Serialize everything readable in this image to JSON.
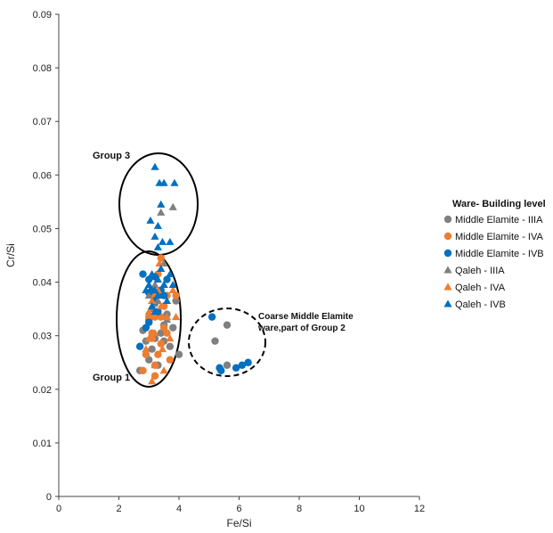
{
  "chart_data": {
    "type": "scatter",
    "xlabel": "Fe/Si",
    "ylabel": "Cr/Si",
    "xlim": [
      0,
      12
    ],
    "ylim": [
      0,
      0.09
    ],
    "x_ticks": [
      "0",
      "2",
      "4",
      "6",
      "8",
      "10",
      "12"
    ],
    "y_ticks": [
      "0",
      "0.01",
      "0.02",
      "0.03",
      "0.04",
      "0.05",
      "0.06",
      "0.07",
      "0.08",
      "0.09"
    ],
    "grid": false,
    "legend": {
      "title": "Ware- Building level",
      "placement": "right"
    },
    "colors": {
      "gray": "#808080",
      "orange": "#ED7D31",
      "blue": "#0070C0"
    },
    "series": [
      {
        "name": "Middle Elamite - IIIA",
        "marker": "circle",
        "color": "#808080",
        "points": [
          [
            2.7,
            0.0235
          ],
          [
            2.8,
            0.031
          ],
          [
            2.9,
            0.029
          ],
          [
            3.0,
            0.033
          ],
          [
            3.1,
            0.0275
          ],
          [
            3.2,
            0.036
          ],
          [
            3.3,
            0.0245
          ],
          [
            3.4,
            0.0305
          ],
          [
            3.5,
            0.032
          ],
          [
            3.6,
            0.034
          ],
          [
            3.7,
            0.028
          ],
          [
            3.8,
            0.0315
          ],
          [
            3.9,
            0.0365
          ],
          [
            4.0,
            0.0265
          ],
          [
            3.3,
            0.038
          ],
          [
            3.0,
            0.0255
          ],
          [
            3.5,
            0.029
          ],
          [
            3.2,
            0.0295
          ],
          [
            5.2,
            0.029
          ],
          [
            5.6,
            0.032
          ],
          [
            5.6,
            0.0245
          ]
        ]
      },
      {
        "name": "Middle Elamite - IVA",
        "marker": "circle",
        "color": "#ED7D31",
        "points": [
          [
            2.8,
            0.0235
          ],
          [
            2.9,
            0.0265
          ],
          [
            3.0,
            0.0335
          ],
          [
            3.1,
            0.0305
          ],
          [
            3.2,
            0.0225
          ],
          [
            3.3,
            0.0345
          ],
          [
            3.4,
            0.0285
          ],
          [
            3.5,
            0.0315
          ],
          [
            3.6,
            0.0375
          ],
          [
            3.7,
            0.0255
          ],
          [
            3.3,
            0.0265
          ],
          [
            3.4,
            0.0335
          ],
          [
            3.5,
            0.0355
          ],
          [
            3.1,
            0.0295
          ],
          [
            3.0,
            0.0325
          ],
          [
            3.2,
            0.0335
          ],
          [
            3.4,
            0.0445
          ],
          [
            3.6,
            0.0305
          ],
          [
            3.9,
            0.0375
          ],
          [
            3.1,
            0.0375
          ],
          [
            3.3,
            0.0415
          ],
          [
            3.2,
            0.0245
          ]
        ]
      },
      {
        "name": "Middle Elamite - IVB",
        "marker": "circle",
        "color": "#0070C0",
        "points": [
          [
            2.8,
            0.0415
          ],
          [
            3.0,
            0.0405
          ],
          [
            3.1,
            0.0385
          ],
          [
            3.2,
            0.0365
          ],
          [
            3.3,
            0.0345
          ],
          [
            3.0,
            0.0325
          ],
          [
            2.9,
            0.0315
          ],
          [
            3.4,
            0.0385
          ],
          [
            3.5,
            0.0375
          ],
          [
            3.6,
            0.0405
          ],
          [
            2.7,
            0.028
          ],
          [
            3.0,
            0.038
          ],
          [
            3.2,
            0.041
          ],
          [
            5.1,
            0.0335
          ],
          [
            5.4,
            0.0235
          ],
          [
            5.9,
            0.024
          ],
          [
            6.1,
            0.0245
          ],
          [
            6.3,
            0.025
          ],
          [
            5.35,
            0.024
          ]
        ]
      },
      {
        "name": "Qaleh - IIIA",
        "marker": "triangle",
        "color": "#808080",
        "points": [
          [
            3.0,
            0.0375
          ],
          [
            3.1,
            0.035
          ],
          [
            3.2,
            0.0395
          ],
          [
            3.4,
            0.053
          ],
          [
            3.8,
            0.054
          ],
          [
            3.5,
            0.0435
          ],
          [
            3.3,
            0.0365
          ],
          [
            3.6,
            0.033
          ]
        ]
      },
      {
        "name": "Qaleh - IVA",
        "marker": "triangle",
        "color": "#ED7D31",
        "points": [
          [
            2.9,
            0.0275
          ],
          [
            3.0,
            0.0345
          ],
          [
            3.1,
            0.0215
          ],
          [
            3.2,
            0.0305
          ],
          [
            3.3,
            0.0385
          ],
          [
            3.4,
            0.0355
          ],
          [
            3.5,
            0.0235
          ],
          [
            3.6,
            0.0335
          ],
          [
            3.7,
            0.0295
          ],
          [
            3.8,
            0.0385
          ],
          [
            3.9,
            0.0335
          ],
          [
            3.1,
            0.0365
          ],
          [
            3.2,
            0.0245
          ],
          [
            3.35,
            0.0435
          ],
          [
            3.5,
            0.0395
          ],
          [
            3.0,
            0.0295
          ],
          [
            3.45,
            0.0275
          ]
        ]
      },
      {
        "name": "Qaleh - IVB",
        "marker": "triangle",
        "color": "#0070C0",
        "points": [
          [
            3.2,
            0.0615
          ],
          [
            3.35,
            0.0585
          ],
          [
            3.5,
            0.0585
          ],
          [
            3.85,
            0.0585
          ],
          [
            3.4,
            0.0545
          ],
          [
            3.3,
            0.0505
          ],
          [
            3.05,
            0.0515
          ],
          [
            3.2,
            0.0485
          ],
          [
            3.7,
            0.0475
          ],
          [
            3.3,
            0.0465
          ],
          [
            3.45,
            0.0475
          ],
          [
            3.0,
            0.0395
          ],
          [
            3.1,
            0.0415
          ],
          [
            3.2,
            0.0385
          ],
          [
            3.3,
            0.0405
          ],
          [
            3.4,
            0.0425
          ],
          [
            3.5,
            0.0395
          ],
          [
            3.6,
            0.0365
          ],
          [
            3.7,
            0.0415
          ],
          [
            3.8,
            0.0395
          ],
          [
            3.1,
            0.0355
          ],
          [
            3.3,
            0.0375
          ],
          [
            2.9,
            0.0385
          ],
          [
            3.2,
            0.0345
          ]
        ]
      }
    ],
    "annotations": [
      {
        "text": "Group 3",
        "x": 2.3,
        "y": 0.0625
      },
      {
        "text": "Group 1",
        "x": 2.3,
        "y": 0.0215
      },
      {
        "text": "Coarse Middle Elamite",
        "x": 6.6,
        "y": 0.0325
      },
      {
        "text": "ware,part of Group 2",
        "x": 6.6,
        "y": 0.0305
      }
    ]
  }
}
